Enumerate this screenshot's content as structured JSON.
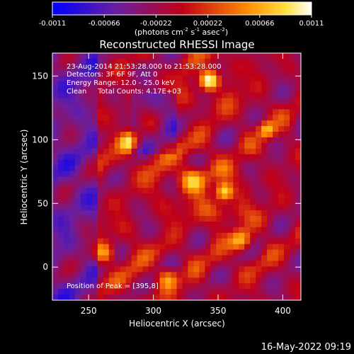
{
  "colorbar": {
    "ticks": [
      "-0.0011",
      "-0.00066",
      "-0.00022",
      "0.00022",
      "0.00066",
      "0.0011"
    ],
    "unit_main": "(photons cm",
    "unit_sup1": "-2",
    "unit_s": " s",
    "unit_sup2": "-1",
    "unit_asec": " asec",
    "unit_sup3": "-2",
    "unit_close": ")"
  },
  "chart_data": {
    "type": "heatmap",
    "title": "Reconstructed RHESSI Image",
    "xlabel": "Heliocentric X (arcsec)",
    "ylabel": "Heliocentric Y (arcsec)",
    "xlim": [
      222,
      414
    ],
    "ylim": [
      -26,
      168
    ],
    "xticks": [
      250,
      300,
      350,
      400
    ],
    "yticks": [
      0,
      50,
      100,
      150
    ],
    "color_range": [
      -0.0011,
      0.0011
    ],
    "colormap": "blue-purple-red-orange-yellow-white",
    "annotations": [
      "23-Aug-2014 21:53:28.000 to 21:53:28.000",
      "Detectors: 3F 6F 9F, Att 0",
      "Energy Range: 12.0 - 25.0 keV",
      "Clean     Total Counts: 4.17E+03"
    ],
    "peak_label": "Position of Peak = [395,8]"
  },
  "footer": {
    "timestamp": "16-May-2022 09:19"
  }
}
